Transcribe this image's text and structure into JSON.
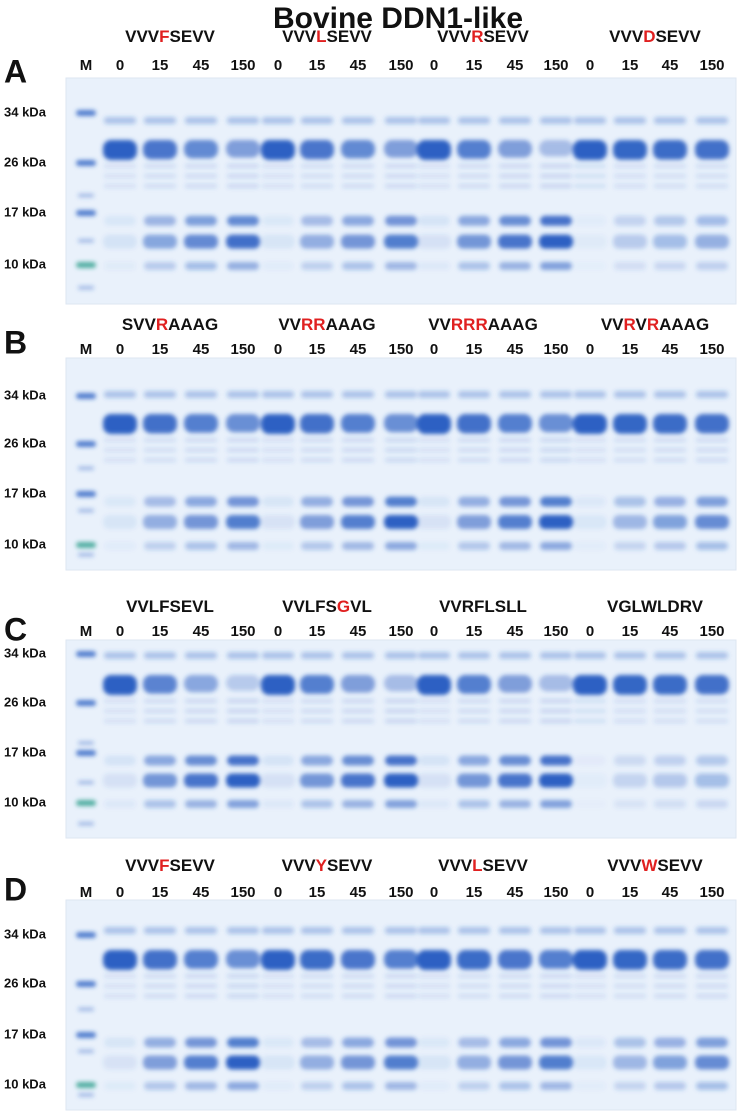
{
  "title": "Bovine DDN1-like",
  "panels": [
    {
      "letter": "A",
      "marker_lane": "M",
      "timepoints": [
        "0",
        "15",
        "45",
        "150"
      ],
      "markers": [
        "34 kDa",
        "26 kDa",
        "17 kDa",
        "10 kDa"
      ],
      "peptides": [
        [
          {
            "text": "VVV"
          },
          {
            "text": "F",
            "color": "#e02020"
          },
          {
            "text": "SEVV"
          }
        ],
        [
          {
            "text": "VVV"
          },
          {
            "text": "L",
            "color": "#e02020"
          },
          {
            "text": "SEVV"
          }
        ],
        [
          {
            "text": "VVV"
          },
          {
            "text": "R",
            "color": "#e02020"
          },
          {
            "text": "SEVV"
          }
        ],
        [
          {
            "text": "VVV"
          },
          {
            "text": "D",
            "color": "#e02020"
          },
          {
            "text": "SEVV"
          }
        ]
      ]
    },
    {
      "letter": "B",
      "marker_lane": "M",
      "timepoints": [
        "0",
        "15",
        "45",
        "150"
      ],
      "markers": [
        "34 kDa",
        "26 kDa",
        "17 kDa",
        "10 kDa"
      ],
      "peptides": [
        [
          {
            "text": "SVV"
          },
          {
            "text": "R",
            "color": "#e02020"
          },
          {
            "text": "AAAG"
          }
        ],
        [
          {
            "text": "VV"
          },
          {
            "text": "RR",
            "color": "#e02020"
          },
          {
            "text": "AAAG"
          }
        ],
        [
          {
            "text": "VV"
          },
          {
            "text": "RRR",
            "color": "#e02020"
          },
          {
            "text": "AAAG"
          }
        ],
        [
          {
            "text": "VV"
          },
          {
            "text": "R",
            "color": "#e02020"
          },
          {
            "text": "V"
          },
          {
            "text": "R",
            "color": "#e02020"
          },
          {
            "text": "AAAG"
          }
        ]
      ]
    },
    {
      "letter": "C",
      "marker_lane": "M",
      "timepoints": [
        "0",
        "15",
        "45",
        "150"
      ],
      "markers": [
        "34 kDa",
        "26 kDa",
        "17 kDa",
        "10 kDa"
      ],
      "peptides": [
        [
          {
            "text": "VVLFSEVL"
          }
        ],
        [
          {
            "text": "VVLFS"
          },
          {
            "text": "G",
            "color": "#e02020"
          },
          {
            "text": "VL"
          }
        ],
        [
          {
            "text": "VVRFLSLL"
          }
        ],
        [
          {
            "text": "VGLWLDRV"
          }
        ]
      ]
    },
    {
      "letter": "D",
      "marker_lane": "M",
      "timepoints": [
        "0",
        "15",
        "45",
        "150"
      ],
      "markers": [
        "34 kDa",
        "26 kDa",
        "17 kDa",
        "10 kDa"
      ],
      "peptides": [
        [
          {
            "text": "VVV"
          },
          {
            "text": "F",
            "color": "#e02020"
          },
          {
            "text": "SEVV"
          }
        ],
        [
          {
            "text": "VVV"
          },
          {
            "text": "Y",
            "color": "#e02020"
          },
          {
            "text": "SEVV"
          }
        ],
        [
          {
            "text": "VVV"
          },
          {
            "text": "L",
            "color": "#e02020"
          },
          {
            "text": "SEVV"
          }
        ],
        [
          {
            "text": "VVV"
          },
          {
            "text": "W",
            "color": "#e02020"
          },
          {
            "text": "SEVV"
          }
        ]
      ]
    }
  ]
}
